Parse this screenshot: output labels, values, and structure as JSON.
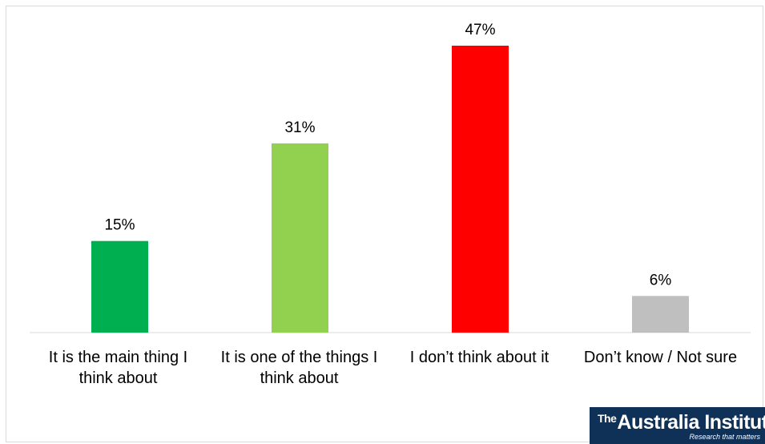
{
  "chart_data": {
    "type": "bar",
    "categories": [
      "It is the main thing I\nthink about",
      "It is one of the things I\nthink about",
      "I don’t think about it",
      "Don’t know / Not sure"
    ],
    "values": [
      15,
      31,
      47,
      6
    ],
    "data_labels": [
      "15%",
      "31%",
      "47%",
      "6%"
    ],
    "colors": [
      "#00b050",
      "#92d050",
      "#ff0000",
      "#bfbfbf"
    ],
    "ylim": [
      0,
      50
    ],
    "grid": false,
    "legend": "none"
  },
  "logo": {
    "the": "The",
    "name": "Australia Institute",
    "tagline": "Research that matters"
  }
}
